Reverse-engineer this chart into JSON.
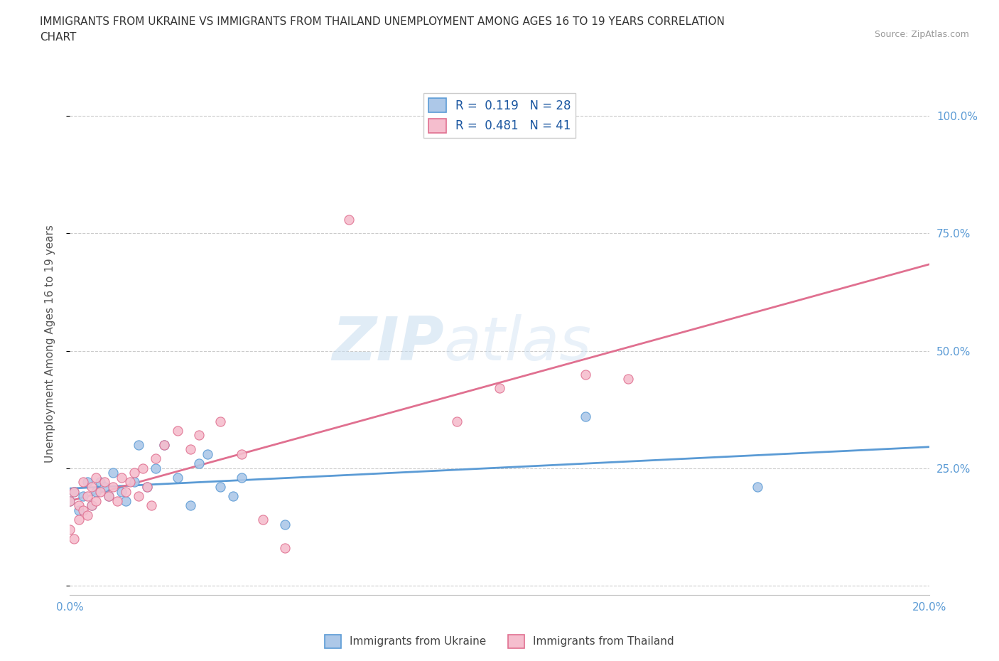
{
  "title": "IMMIGRANTS FROM UKRAINE VS IMMIGRANTS FROM THAILAND UNEMPLOYMENT AMONG AGES 16 TO 19 YEARS CORRELATION\nCHART",
  "source": "Source: ZipAtlas.com",
  "ylabel": "Unemployment Among Ages 16 to 19 years",
  "xlim": [
    0.0,
    0.2
  ],
  "ylim": [
    -0.02,
    1.05
  ],
  "ytick_values": [
    0.0,
    0.25,
    0.5,
    0.75,
    1.0
  ],
  "xtick_values": [
    0.0,
    0.02,
    0.04,
    0.06,
    0.08,
    0.1,
    0.12,
    0.14,
    0.16,
    0.18,
    0.2
  ],
  "ukraine_color": "#adc8e8",
  "ukraine_edge_color": "#5b9bd5",
  "thailand_color": "#f5bece",
  "thailand_edge_color": "#e07090",
  "ukraine_line_color": "#5b9bd5",
  "thailand_line_color": "#e07090",
  "ukraine_R": 0.119,
  "ukraine_N": 28,
  "thailand_R": 0.481,
  "thailand_N": 41,
  "ukraine_scatter_x": [
    0.0,
    0.001,
    0.002,
    0.003,
    0.004,
    0.005,
    0.006,
    0.007,
    0.008,
    0.009,
    0.01,
    0.012,
    0.013,
    0.015,
    0.016,
    0.018,
    0.02,
    0.022,
    0.025,
    0.028,
    0.03,
    0.032,
    0.035,
    0.038,
    0.04,
    0.05,
    0.12,
    0.16
  ],
  "ukraine_scatter_y": [
    0.18,
    0.2,
    0.16,
    0.19,
    0.22,
    0.17,
    0.2,
    0.22,
    0.21,
    0.19,
    0.24,
    0.2,
    0.18,
    0.22,
    0.3,
    0.21,
    0.25,
    0.3,
    0.23,
    0.17,
    0.26,
    0.28,
    0.21,
    0.19,
    0.23,
    0.13,
    0.36,
    0.21
  ],
  "thailand_scatter_x": [
    0.0,
    0.0,
    0.001,
    0.001,
    0.002,
    0.002,
    0.003,
    0.003,
    0.004,
    0.004,
    0.005,
    0.005,
    0.006,
    0.006,
    0.007,
    0.008,
    0.009,
    0.01,
    0.011,
    0.012,
    0.013,
    0.014,
    0.015,
    0.016,
    0.017,
    0.018,
    0.019,
    0.02,
    0.022,
    0.025,
    0.028,
    0.03,
    0.035,
    0.04,
    0.045,
    0.05,
    0.065,
    0.09,
    0.1,
    0.12,
    0.13
  ],
  "thailand_scatter_y": [
    0.18,
    0.12,
    0.2,
    0.1,
    0.17,
    0.14,
    0.22,
    0.16,
    0.19,
    0.15,
    0.21,
    0.17,
    0.23,
    0.18,
    0.2,
    0.22,
    0.19,
    0.21,
    0.18,
    0.23,
    0.2,
    0.22,
    0.24,
    0.19,
    0.25,
    0.21,
    0.17,
    0.27,
    0.3,
    0.33,
    0.29,
    0.32,
    0.35,
    0.28,
    0.14,
    0.08,
    0.78,
    0.35,
    0.42,
    0.45,
    0.44
  ],
  "watermark_zip": "ZIP",
  "watermark_atlas": "atlas",
  "background_color": "#ffffff",
  "grid_color": "#cccccc",
  "axis_color": "#5b9bd5",
  "legend_R_color": "#1a56a0",
  "title_color": "#333333",
  "ylabel_color": "#555555"
}
